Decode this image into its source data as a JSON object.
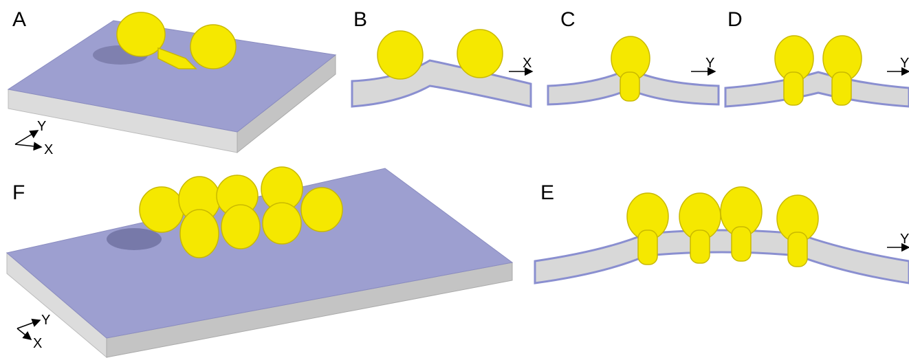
{
  "panels": [
    {
      "label": "A",
      "axes": [
        "Y",
        "X"
      ]
    },
    {
      "label": "B",
      "axes": [
        "X"
      ]
    },
    {
      "label": "C",
      "axes": [
        "Y"
      ]
    },
    {
      "label": "D",
      "axes": [
        "Y"
      ]
    },
    {
      "label": "E",
      "axes": [
        "Y"
      ]
    },
    {
      "label": "F",
      "axes": [
        "Y",
        "X"
      ]
    }
  ]
}
